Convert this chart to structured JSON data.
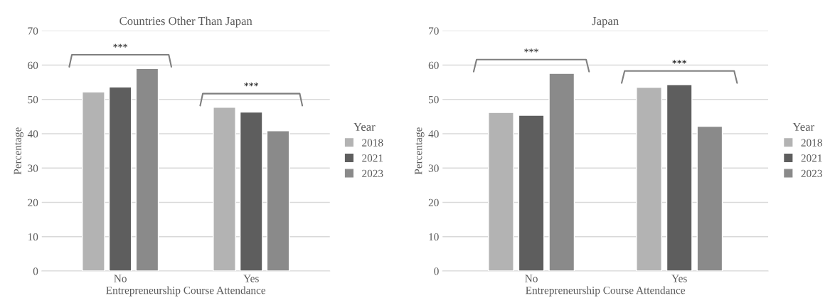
{
  "chart_data": [
    {
      "type": "bar",
      "title": "Countries Other Than Japan",
      "xlabel": "Entrepreneurship Course Attendance",
      "ylabel": "Percentage",
      "legend_title": "Year",
      "categories": [
        "No",
        "Yes"
      ],
      "series": [
        {
          "name": "2018",
          "color": "#b3b3b3",
          "values": [
            52.2,
            47.7
          ]
        },
        {
          "name": "2021",
          "color": "#5e5e5e",
          "values": [
            53.6,
            46.3
          ]
        },
        {
          "name": "2023",
          "color": "#8a8a8a",
          "values": [
            59.0,
            40.9
          ]
        }
      ],
      "ylim": [
        0,
        70
      ],
      "yticks": [
        0,
        10,
        20,
        30,
        40,
        50,
        60,
        70
      ],
      "grid": "y",
      "legend": "right",
      "annotations": [
        "***",
        "***"
      ]
    },
    {
      "type": "bar",
      "title": "Japan",
      "xlabel": "Entrepreneurship Course Attendance",
      "ylabel": "Percentage",
      "legend_title": "Year",
      "categories": [
        "No",
        "Yes"
      ],
      "series": [
        {
          "name": "2018",
          "color": "#b3b3b3",
          "values": [
            46.2,
            53.5
          ]
        },
        {
          "name": "2021",
          "color": "#5e5e5e",
          "values": [
            45.4,
            54.3
          ]
        },
        {
          "name": "2023",
          "color": "#8a8a8a",
          "values": [
            57.6,
            42.2
          ]
        }
      ],
      "ylim": [
        0,
        70
      ],
      "yticks": [
        0,
        10,
        20,
        30,
        40,
        50,
        60,
        70
      ],
      "grid": "y",
      "legend": "right",
      "annotations": [
        "***",
        "***"
      ]
    }
  ]
}
